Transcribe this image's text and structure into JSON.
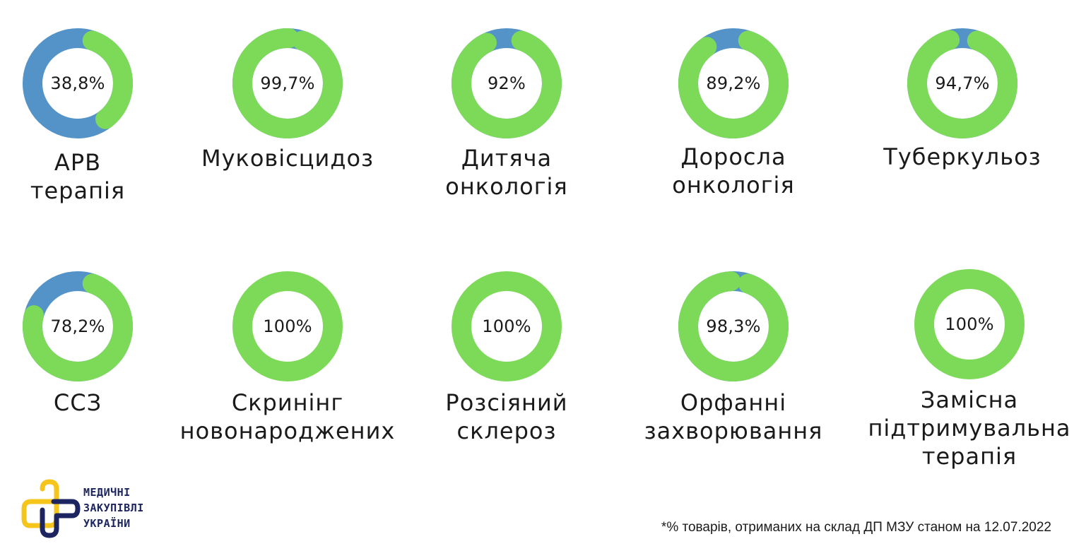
{
  "colors": {
    "achieved": "#7dda58",
    "remaining": "#5493c8",
    "logo_yellow": "#f5c51b",
    "logo_navy": "#1c2560"
  },
  "chart_data": [
    {
      "type": "pie",
      "name_lines": [
        "АРВ",
        "терапія"
      ],
      "value": 38.8,
      "value_label": "38,8%"
    },
    {
      "type": "pie",
      "name_lines": [
        "Муковісцидоз"
      ],
      "value": 99.7,
      "value_label": "99,7%"
    },
    {
      "type": "pie",
      "name_lines": [
        "Дитяча",
        "онкологія"
      ],
      "value": 92,
      "value_label": "92%"
    },
    {
      "type": "pie",
      "name_lines": [
        "Доросла",
        "онкологія"
      ],
      "value": 89.2,
      "value_label": "89,2%"
    },
    {
      "type": "pie",
      "name_lines": [
        "Туберкульоз"
      ],
      "value": 94.7,
      "value_label": "94,7%"
    },
    {
      "type": "pie",
      "name_lines": [
        "ССЗ"
      ],
      "value": 78.2,
      "value_label": "78,2%"
    },
    {
      "type": "pie",
      "name_lines": [
        "Скринінг",
        "новонароджених"
      ],
      "value": 100,
      "value_label": "100%"
    },
    {
      "type": "pie",
      "name_lines": [
        "Розсіяний",
        "склероз"
      ],
      "value": 100,
      "value_label": "100%"
    },
    {
      "type": "pie",
      "name_lines": [
        "Орфанні",
        "захворювання"
      ],
      "value": 98.3,
      "value_label": "98,3%"
    },
    {
      "type": "pie",
      "name_lines": [
        "Замісна",
        "підтримувальна",
        "терапія"
      ],
      "value": 100,
      "value_label": "100%"
    }
  ],
  "logo": {
    "lines": [
      "МЕДИЧНІ",
      "ЗАКУПІВЛІ",
      "УКРАЇНИ"
    ],
    "icon": "cross-logo-icon"
  },
  "footnote": "*% товарів, отриманих на склад ДП МЗУ станом на 12.07.2022"
}
